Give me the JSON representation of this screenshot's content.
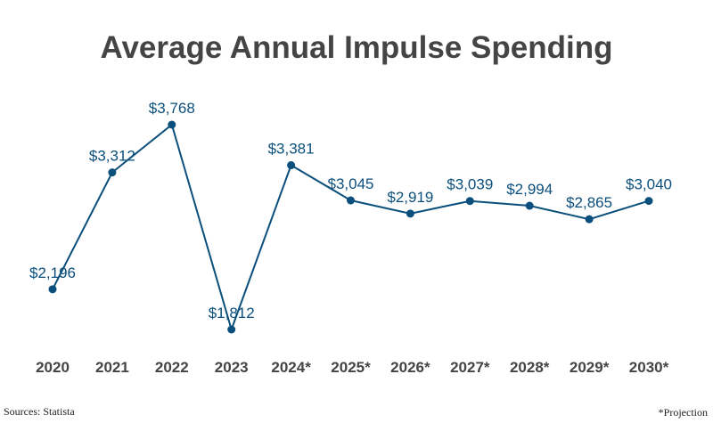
{
  "chart_data": {
    "type": "line",
    "title": "Average Annual Impulse Spending",
    "categories": [
      "2020",
      "2021",
      "2022",
      "2023",
      "2024*",
      "2025*",
      "2026*",
      "2027*",
      "2028*",
      "2029*",
      "2030*"
    ],
    "values": [
      2196,
      3312,
      3768,
      1812,
      3381,
      3045,
      2919,
      3039,
      2994,
      2865,
      3040
    ],
    "data_labels": [
      "$2,196",
      "$3,312",
      "$3,768",
      "$1,812",
      "$3,381",
      "$3,045",
      "$2,919",
      "$3,039",
      "$2,994",
      "$2,865",
      "$3,040"
    ],
    "xlabel": "",
    "ylabel": "",
    "grid": false,
    "legend": "none",
    "colors": {
      "line": "#0b4f7c",
      "labels": "#0b4f7c",
      "ticks": "#444444",
      "title": "#444444"
    }
  },
  "footer": {
    "source": "Sources: Statista",
    "note": "*Projection"
  }
}
